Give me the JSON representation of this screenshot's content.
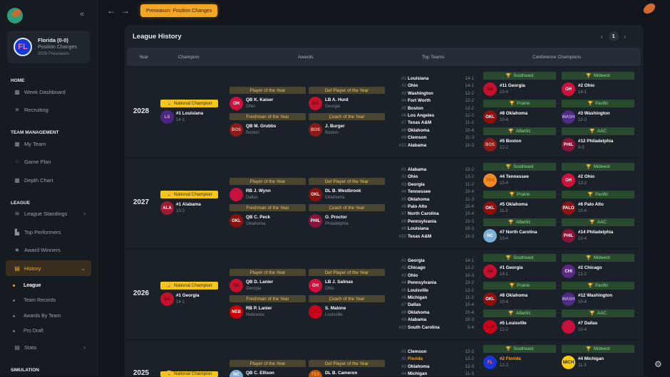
{
  "topbar": {
    "phase": "Preseason: Position Changes",
    "back": "←",
    "forward": "→"
  },
  "sidebar": {
    "team": {
      "abbr": "FL",
      "name": "Florida (0-0)",
      "phase": "Position Changes",
      "season": "2029 Preseason"
    },
    "collapse": "«",
    "sections": [
      {
        "title": "HOME",
        "items": [
          {
            "label": "Week Dashboard",
            "icon": "dashboard-icon"
          },
          {
            "label": "Recruiting",
            "icon": "recruiting-icon"
          }
        ]
      },
      {
        "title": "TEAM MANAGEMENT",
        "items": [
          {
            "label": "My Team",
            "icon": "team-icon"
          },
          {
            "label": "Game Plan",
            "icon": "gameplan-icon"
          },
          {
            "label": "Depth Chart",
            "icon": "depth-chart-icon"
          }
        ]
      },
      {
        "title": "LEAGUE",
        "items": [
          {
            "label": "League Standings",
            "icon": "standings-icon",
            "chevron": "›"
          },
          {
            "label": "Top Performers",
            "icon": "performers-icon"
          },
          {
            "label": "Award Winners",
            "icon": "award-icon"
          },
          {
            "label": "History",
            "icon": "history-icon",
            "chevron": "⌄",
            "active": true
          },
          {
            "label": "League",
            "sub": true,
            "active": true
          },
          {
            "label": "Team Records",
            "sub": true
          },
          {
            "label": "Awards By Team",
            "sub": true
          },
          {
            "label": "Pro Draft",
            "sub": true
          },
          {
            "label": "Stats",
            "icon": "stats-icon",
            "chevron": "›"
          }
        ]
      },
      {
        "title": "SIMULATION",
        "items": []
      }
    ]
  },
  "panel": {
    "title": "League History",
    "page": "1",
    "prev": "‹",
    "next": "›",
    "columns": [
      "Year",
      "Champion",
      "Awards",
      "Top Teams",
      "Conference Champions"
    ],
    "badge": "National Champion",
    "award_titles": [
      "Player of the Year",
      "Def Player of the Year",
      "Freshman of the Year",
      "Coach of the Year"
    ],
    "conf_titles": [
      "Southeast",
      "Midwest",
      "Prairie",
      "Pacific",
      "Atlantic",
      "AAC"
    ]
  },
  "colors": {
    "accent": "#f5a623",
    "badge": "#f5c518",
    "award_header": "#4a4530",
    "conf_header": "#2a4a30"
  },
  "logos": {
    "GA": [
      "#c8102e",
      "#5a0010"
    ],
    "OH": [
      "#d0103a",
      "#fff"
    ],
    "LS": [
      "#4b2580",
      "#f5c518"
    ],
    "BOS": [
      "#8b1a1a",
      "#f0b0b0"
    ],
    "OKL": [
      "#8b1010",
      "#fff"
    ],
    "WASH": [
      "#4b2e83",
      "#b9a0e0"
    ],
    "PHIL": [
      "#8a1538",
      "#fff"
    ],
    "ALA": [
      "#9e1b32",
      "#fff"
    ],
    "TEN": [
      "#f08a24",
      "#c85a00"
    ],
    "PALO": [
      "#8c1515",
      "#fff"
    ],
    "NC": [
      "#7bafd4",
      "#fff"
    ],
    "CHI": [
      "#5b2a86",
      "#fff"
    ],
    "LOU": [
      "#d0021b",
      "#7a0010"
    ],
    "NEB": [
      "#d00000",
      "#fff"
    ],
    "DAL": [
      "#c8103e",
      "#c8103e"
    ],
    "FL": [
      "#1638d8",
      "#ff6f8a"
    ],
    "MICH": [
      "#ffcb05",
      "#00274c"
    ],
    "TEX": [
      "#bf5700",
      "#f0a060"
    ]
  },
  "years": [
    {
      "year": "2028",
      "champ": {
        "abbr": "LS",
        "name": "#1 Louisiana",
        "rec": "14-1"
      },
      "awards": [
        {
          "abbr": "OH",
          "name": "QB K. Kaiser",
          "team": "Ohio"
        },
        {
          "abbr": "GA",
          "name": "LB A. Hurd",
          "team": "Georgia"
        },
        {
          "abbr": "BOS",
          "name": "QB M. Grubbs",
          "team": "Boston"
        },
        {
          "abbr": "BOS",
          "name": "J. Burger",
          "team": "Boston"
        }
      ],
      "top": [
        [
          "#1",
          "Louisiana",
          "14-1"
        ],
        [
          "#2",
          "Ohio",
          "14-1"
        ],
        [
          "#3",
          "Washington",
          "12-2"
        ],
        [
          "#4",
          "Fort Worth",
          "12-2"
        ],
        [
          "#5",
          "Boston",
          "12-2"
        ],
        [
          "#6",
          "Los Angeles",
          "12-2"
        ],
        [
          "#7",
          "Texas A&M",
          "11-2"
        ],
        [
          "#8",
          "Oklahoma",
          "10-4"
        ],
        [
          "#9",
          "Clemson",
          "11-3"
        ],
        [
          "#10",
          "Alabama",
          "10-3"
        ]
      ],
      "conf": [
        {
          "abbr": "GA",
          "name": "#11 Georgia",
          "rec": "10-4"
        },
        {
          "abbr": "OH",
          "name": "#2 Ohio",
          "rec": "14-1"
        },
        {
          "abbr": "OKL",
          "name": "#8 Oklahoma",
          "rec": "10-4"
        },
        {
          "abbr": "WASH",
          "name": "#3 Washington",
          "rec": "12-2"
        },
        {
          "abbr": "BOS",
          "name": "#5 Boston",
          "rec": "12-2"
        },
        {
          "abbr": "PHIL",
          "name": "#12 Philadelphia",
          "rec": "9-5"
        }
      ]
    },
    {
      "year": "2027",
      "champ": {
        "abbr": "ALA",
        "name": "#1 Alabama",
        "rec": "13-2"
      },
      "awards": [
        {
          "abbr": "DAL",
          "name": "RB J. Wynn",
          "team": "Dallas"
        },
        {
          "abbr": "OKL",
          "name": "DL B. Westbrook",
          "team": "Oklahoma"
        },
        {
          "abbr": "OKL",
          "name": "QB C. Peck",
          "team": "Oklahoma"
        },
        {
          "abbr": "PHIL",
          "name": "O. Proctor",
          "team": "Philadelphia"
        }
      ],
      "top": [
        [
          "#1",
          "Alabama",
          "13-2"
        ],
        [
          "#2",
          "Ohio",
          "13-2"
        ],
        [
          "#3",
          "Georgia",
          "11-2"
        ],
        [
          "#4",
          "Tennessee",
          "10-4"
        ],
        [
          "#5",
          "Oklahoma",
          "11-3"
        ],
        [
          "#6",
          "Palo Alto",
          "10-4"
        ],
        [
          "#7",
          "North Carolina",
          "10-4"
        ],
        [
          "#8",
          "Pennsylvania",
          "10-3"
        ],
        [
          "#9",
          "Louisiana",
          "10-3"
        ],
        [
          "#10",
          "Texas A&M",
          "10-3"
        ]
      ],
      "conf": [
        {
          "abbr": "TEN",
          "name": "#4 Tennessee",
          "rec": "10-4"
        },
        {
          "abbr": "OH",
          "name": "#2 Ohio",
          "rec": "13-2"
        },
        {
          "abbr": "OKL",
          "name": "#5 Oklahoma",
          "rec": "11-3"
        },
        {
          "abbr": "PALO",
          "name": "#6 Palo Alto",
          "rec": "10-4"
        },
        {
          "abbr": "NC",
          "name": "#7 North Carolina",
          "rec": "10-4"
        },
        {
          "abbr": "PHIL",
          "name": "#14 Philadelphia",
          "rec": "10-4"
        }
      ]
    },
    {
      "year": "2026",
      "champ": {
        "abbr": "GA",
        "name": "#1 Georgia",
        "rec": "14-1"
      },
      "awards": [
        {
          "abbr": "GA",
          "name": "QB D. Lanier",
          "team": "Georgia"
        },
        {
          "abbr": "OH",
          "name": "LB J. Salinas",
          "team": "Ohio"
        },
        {
          "abbr": "NEB",
          "name": "RB P. Lanier",
          "team": "Nebraska"
        },
        {
          "abbr": "LOU",
          "name": "S. Malone",
          "team": "Louisville"
        }
      ],
      "top": [
        [
          "#1",
          "Georgia",
          "14-1"
        ],
        [
          "#2",
          "Chicago",
          "12-2"
        ],
        [
          "#3",
          "Ohio",
          "10-3"
        ],
        [
          "#4",
          "Pennsylvania",
          "13-2"
        ],
        [
          "#5",
          "Louisville",
          "12-2"
        ],
        [
          "#6",
          "Michigan",
          "11-2"
        ],
        [
          "#7",
          "Dallas",
          "10-4"
        ],
        [
          "#8",
          "Oklahoma",
          "10-4"
        ],
        [
          "#9",
          "Alabama",
          "10-3"
        ],
        [
          "#10",
          "South Carolina",
          "9-4"
        ]
      ],
      "conf": [
        {
          "abbr": "GA",
          "name": "#1 Georgia",
          "rec": "14-1"
        },
        {
          "abbr": "CHI",
          "name": "#2 Chicago",
          "rec": "12-2"
        },
        {
          "abbr": "OKL",
          "name": "#8 Oklahoma",
          "rec": "10-4"
        },
        {
          "abbr": "WASH",
          "name": "#12 Washington",
          "rec": "10-4"
        },
        {
          "abbr": "LOU",
          "name": "#5 Louisville",
          "rec": "12-2"
        },
        {
          "abbr": "DAL",
          "name": "#7 Dallas",
          "rec": "10-4"
        }
      ]
    },
    {
      "year": "2025",
      "champ": null,
      "awards": [
        {
          "abbr": "NC",
          "name": "QB C. Ellison",
          "team": ""
        },
        {
          "abbr": "TEX",
          "name": "DL B. Cameron",
          "team": ""
        }
      ],
      "top": [
        [
          "#1",
          "Clemson",
          "12-3"
        ],
        [
          "#2",
          "Florida",
          "12-2",
          true
        ],
        [
          "#3",
          "Oklahoma",
          "12-3"
        ],
        [
          "#4",
          "Michigan",
          "11-3"
        ]
      ],
      "conf": [
        {
          "abbr": "FL",
          "name": "#2 Florida",
          "rec": "12-2",
          "me": true
        },
        {
          "abbr": "MICH",
          "name": "#4 Michigan",
          "rec": "11-3"
        }
      ]
    }
  ]
}
